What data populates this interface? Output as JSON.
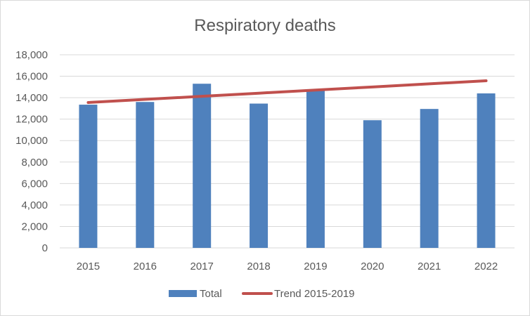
{
  "chart_data": {
    "type": "bar",
    "title": "Respiratory deaths",
    "xlabel": "",
    "ylabel": "",
    "categories": [
      "2015",
      "2016",
      "2017",
      "2018",
      "2019",
      "2020",
      "2021",
      "2022"
    ],
    "ylim": [
      0,
      18000
    ],
    "yticks": [
      0,
      2000,
      4000,
      6000,
      8000,
      10000,
      12000,
      14000,
      16000,
      18000
    ],
    "ytick_labels": [
      "0",
      "2,000",
      "4,000",
      "6,000",
      "8,000",
      "10,000",
      "12,000",
      "14,000",
      "16,000",
      "18,000"
    ],
    "grid": true,
    "legend_position": "bottom",
    "series": [
      {
        "name": "Total",
        "kind": "bar",
        "color": "#4f81bd",
        "values": [
          13350,
          13600,
          15300,
          13450,
          14700,
          11900,
          12950,
          14400
        ]
      },
      {
        "name": "Trend 2015-2019",
        "kind": "line",
        "color": "#c0504d",
        "values": [
          13550,
          13840,
          14130,
          14420,
          14710,
          15000,
          15290,
          15580
        ]
      }
    ]
  }
}
